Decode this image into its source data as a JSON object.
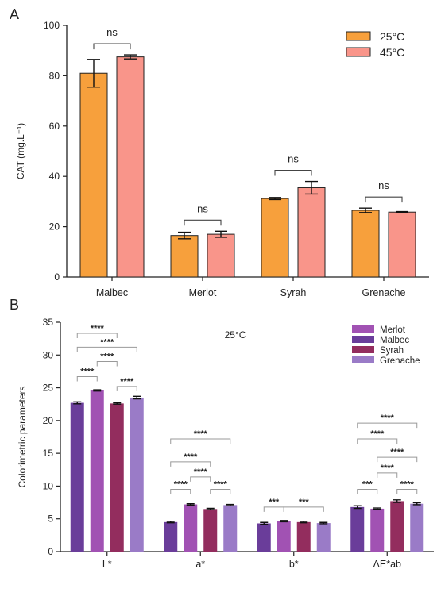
{
  "colors": {
    "t25": "#f7a03c",
    "t45": "#f9958a",
    "merlot": "#a152b3",
    "malbec": "#6a3d9a",
    "syrah": "#932d5e",
    "grenache": "#9a7bc7"
  },
  "chart_data": [
    {
      "panel": "A",
      "type": "bar",
      "ylabel": "CAT (mg.L⁻¹)",
      "ylim": [
        0,
        100
      ],
      "yticks": [
        "0",
        "20",
        "40",
        "60",
        "80",
        "100"
      ],
      "categories": [
        "Malbec",
        "Merlot",
        "Syrah",
        "Grenache"
      ],
      "legend_position": "top-right",
      "series": [
        {
          "name": "25°C",
          "color_key": "t25",
          "values": [
            81,
            16.5,
            31.2,
            26.5
          ],
          "errors": [
            5.5,
            1.3,
            0.4,
            0.9
          ]
        },
        {
          "name": "45°C",
          "color_key": "t45",
          "values": [
            87.5,
            17,
            35.5,
            25.8
          ],
          "errors": [
            0.8,
            1.2,
            2.5,
            0.2
          ]
        }
      ],
      "significance": [
        "ns",
        "ns",
        "ns",
        "ns"
      ]
    },
    {
      "panel": "B",
      "type": "bar",
      "ylabel": "Colorimetric parameters",
      "ylim": [
        0,
        35
      ],
      "yticks": [
        "0",
        "5",
        "10",
        "15",
        "20",
        "25",
        "30",
        "35"
      ],
      "annotation": "25°C",
      "categories": [
        "L*",
        "a*",
        "b*",
        "ΔE*ab"
      ],
      "legend_position": "top-right",
      "legend_order": [
        "Merlot",
        "Malbec",
        "Syrah",
        "Grenache"
      ],
      "series": [
        {
          "name": "Malbec",
          "color_key": "malbec",
          "values": [
            22.7,
            4.5,
            4.3,
            6.8
          ],
          "errors": [
            0.15,
            0.1,
            0.15,
            0.2
          ]
        },
        {
          "name": "Merlot",
          "color_key": "merlot",
          "values": [
            24.6,
            7.2,
            4.65,
            6.55
          ],
          "errors": [
            0.1,
            0.1,
            0.1,
            0.1
          ]
        },
        {
          "name": "Syrah",
          "color_key": "syrah",
          "values": [
            22.6,
            6.5,
            4.5,
            7.7
          ],
          "errors": [
            0.1,
            0.1,
            0.1,
            0.2
          ]
        },
        {
          "name": "Grenache",
          "color_key": "grenache",
          "values": [
            23.5,
            7.1,
            4.35,
            7.3
          ],
          "errors": [
            0.2,
            0.1,
            0.1,
            0.15
          ]
        }
      ],
      "significance_labels": {
        "L*": [
          "****",
          "****",
          "****",
          "****",
          "****"
        ],
        "a*": [
          "****",
          "****",
          "****",
          "****",
          "****"
        ],
        "b*": [
          "***",
          "***"
        ],
        "ΔE*ab": [
          "****",
          "****",
          "****",
          "****",
          "***",
          "****"
        ]
      }
    }
  ]
}
